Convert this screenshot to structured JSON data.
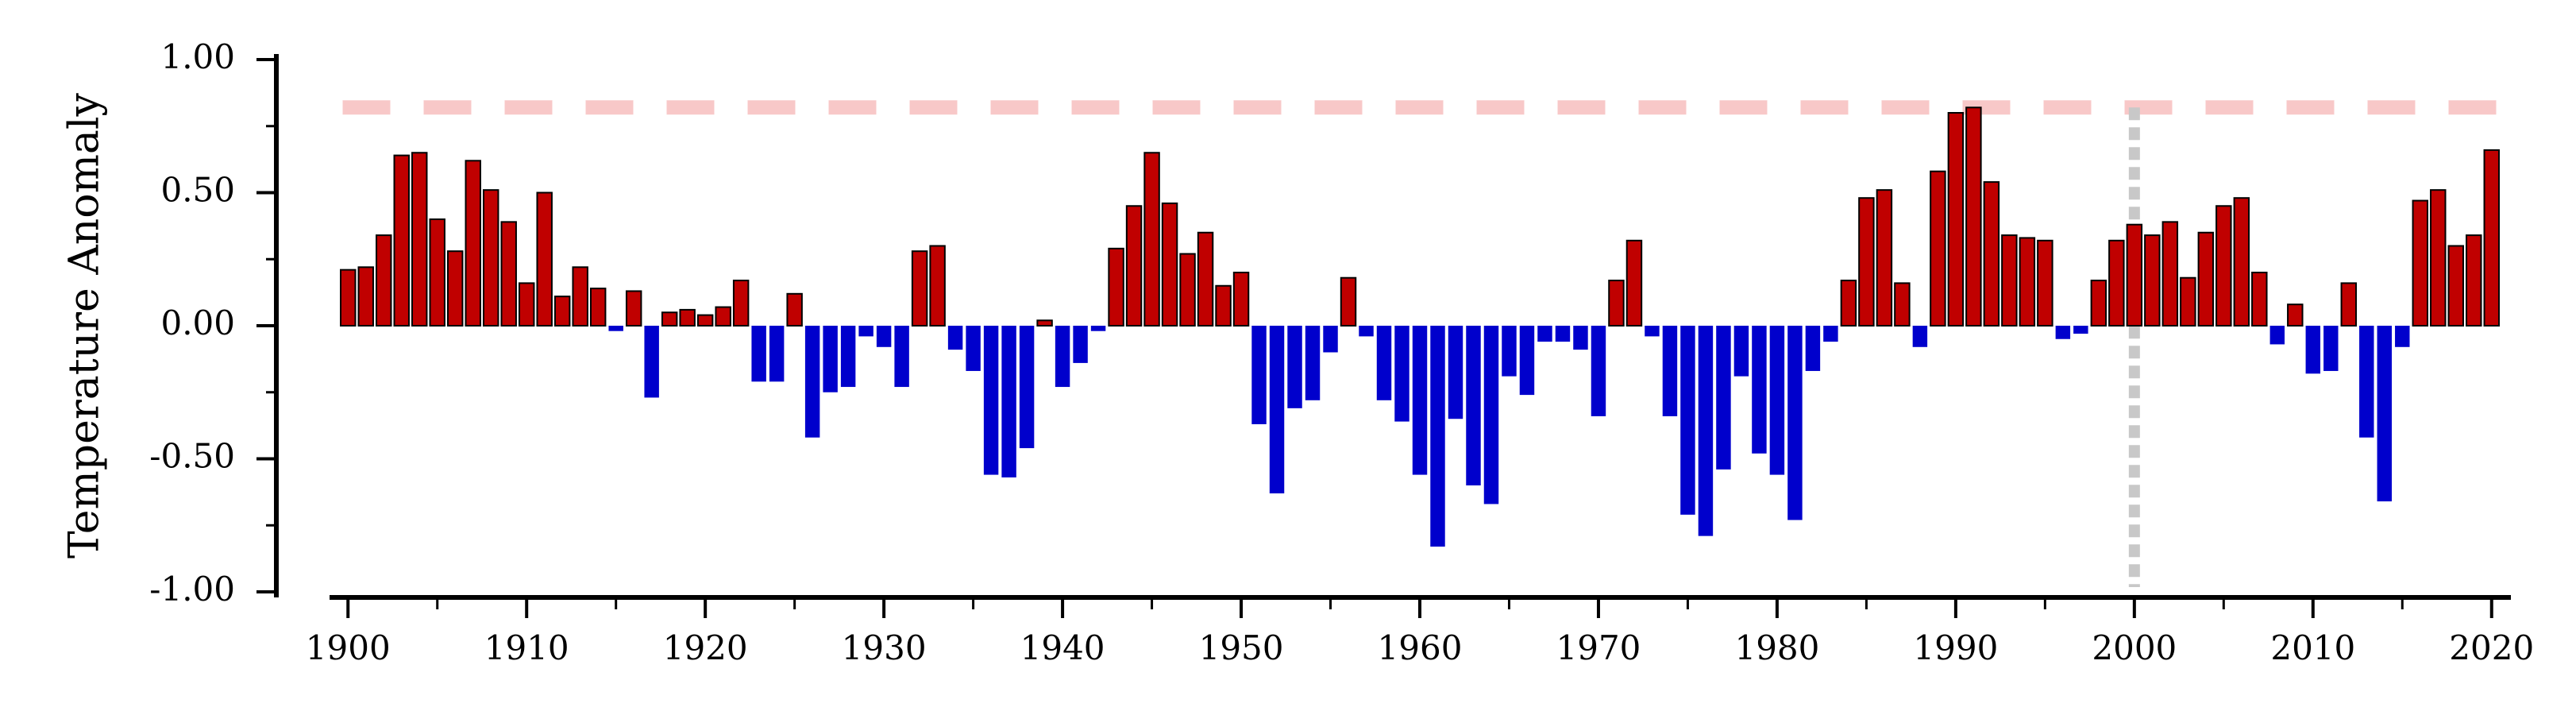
{
  "chart_data": {
    "type": "bar",
    "ylabel": "Temperature Anomaly",
    "xlabel": "",
    "title": "",
    "ylim": [
      -1.0,
      1.0
    ],
    "xlim": [
      1899.5,
      2020.5
    ],
    "grid": false,
    "legend": "none",
    "x_ticks": [
      "1900",
      "1910",
      "1920",
      "1930",
      "1940",
      "1950",
      "1960",
      "1970",
      "1980",
      "1990",
      "2000",
      "2010",
      "2020"
    ],
    "x_tick_values": [
      1900,
      1910,
      1920,
      1930,
      1940,
      1950,
      1960,
      1970,
      1980,
      1990,
      2000,
      2010,
      2020
    ],
    "y_ticks": [
      "-1.00",
      "-0.50",
      "0.00",
      "0.50",
      "1.00"
    ],
    "y_tick_values": [
      -1.0,
      -0.5,
      0.0,
      0.5,
      1.0
    ],
    "colors": {
      "positive": "#c00000",
      "negative": "#0000cc",
      "reference_line": "#f8c8c8",
      "marker_line": "#c8c8c8"
    },
    "reference_line_y": 0.82,
    "marker_line_x": 2000,
    "x": [
      1900,
      1901,
      1902,
      1903,
      1904,
      1905,
      1906,
      1907,
      1908,
      1909,
      1910,
      1911,
      1912,
      1913,
      1914,
      1915,
      1916,
      1917,
      1918,
      1919,
      1920,
      1921,
      1922,
      1923,
      1924,
      1925,
      1926,
      1927,
      1928,
      1929,
      1930,
      1931,
      1932,
      1933,
      1934,
      1935,
      1936,
      1937,
      1938,
      1939,
      1940,
      1941,
      1942,
      1943,
      1944,
      1945,
      1946,
      1947,
      1948,
      1949,
      1950,
      1951,
      1952,
      1953,
      1954,
      1955,
      1956,
      1957,
      1958,
      1959,
      1960,
      1961,
      1962,
      1963,
      1964,
      1965,
      1966,
      1967,
      1968,
      1969,
      1970,
      1971,
      1972,
      1973,
      1974,
      1975,
      1976,
      1977,
      1978,
      1979,
      1980,
      1981,
      1982,
      1983,
      1984,
      1985,
      1986,
      1987,
      1988,
      1989,
      1990,
      1991,
      1992,
      1993,
      1994,
      1995,
      1996,
      1997,
      1998,
      1999,
      2000,
      2001,
      2002,
      2003,
      2004,
      2005,
      2006,
      2007,
      2008,
      2009,
      2010,
      2011,
      2012,
      2013,
      2014,
      2015,
      2016,
      2017,
      2018,
      2019,
      2020
    ],
    "values": [
      0.21,
      0.22,
      0.34,
      0.64,
      0.65,
      0.4,
      0.28,
      0.62,
      0.51,
      0.39,
      0.16,
      0.5,
      0.11,
      0.22,
      0.14,
      -0.02,
      0.13,
      -0.27,
      0.05,
      0.06,
      0.04,
      0.07,
      0.17,
      -0.21,
      -0.21,
      0.12,
      -0.42,
      -0.25,
      -0.23,
      -0.04,
      -0.08,
      -0.23,
      0.28,
      0.3,
      -0.09,
      -0.17,
      -0.56,
      -0.57,
      -0.46,
      0.02,
      -0.23,
      -0.14,
      -0.02,
      0.29,
      0.45,
      0.65,
      0.46,
      0.27,
      0.35,
      0.15,
      0.2,
      -0.37,
      -0.63,
      -0.31,
      -0.28,
      -0.1,
      0.18,
      -0.04,
      -0.28,
      -0.36,
      -0.56,
      -0.83,
      -0.35,
      -0.6,
      -0.67,
      -0.19,
      -0.26,
      -0.06,
      -0.06,
      -0.09,
      -0.34,
      0.17,
      0.32,
      -0.04,
      -0.34,
      -0.71,
      -0.79,
      -0.54,
      -0.19,
      -0.48,
      -0.56,
      -0.73,
      -0.17,
      -0.06,
      0.17,
      0.48,
      0.51,
      0.16,
      -0.08,
      0.58,
      0.8,
      0.82,
      0.54,
      0.34,
      0.33,
      0.32,
      -0.05,
      -0.03,
      0.17,
      0.32,
      0.38,
      0.34,
      0.39,
      0.18,
      0.35,
      0.45,
      0.48,
      0.2,
      -0.07,
      0.08,
      -0.18,
      -0.17,
      0.16,
      -0.42,
      -0.66,
      -0.08,
      0.47,
      0.51,
      0.3,
      0.34,
      0.66
    ]
  }
}
